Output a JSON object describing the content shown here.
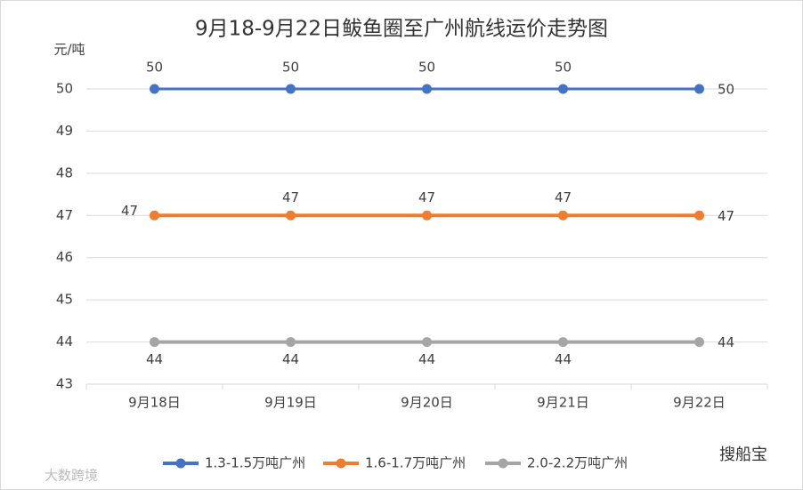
{
  "chart_data": {
    "type": "line",
    "title": "9月18-9月22日鲅鱼圈至广州航线运价走势图",
    "y_label": "元/吨",
    "categories": [
      "9月18日",
      "9月19日",
      "9月20日",
      "9月21日",
      "9月22日"
    ],
    "series": [
      {
        "name": "1.3-1.5万吨广州",
        "color": "#4472c4",
        "values": [
          50,
          50,
          50,
          50,
          50
        ]
      },
      {
        "name": "1.6-1.7万吨广州",
        "color": "#ed7d31",
        "values": [
          47,
          47,
          47,
          47,
          47
        ]
      },
      {
        "name": "2.0-2.2万吨广州",
        "color": "#a5a5a5",
        "values": [
          44,
          44,
          44,
          44,
          44
        ]
      }
    ],
    "ylim": [
      43,
      50
    ],
    "yticks": [
      43,
      44,
      45,
      46,
      47,
      48,
      49,
      50
    ],
    "grid": true,
    "legend": "bottom"
  },
  "watermarks": [
    "搜船宝",
    "大数跨境"
  ]
}
